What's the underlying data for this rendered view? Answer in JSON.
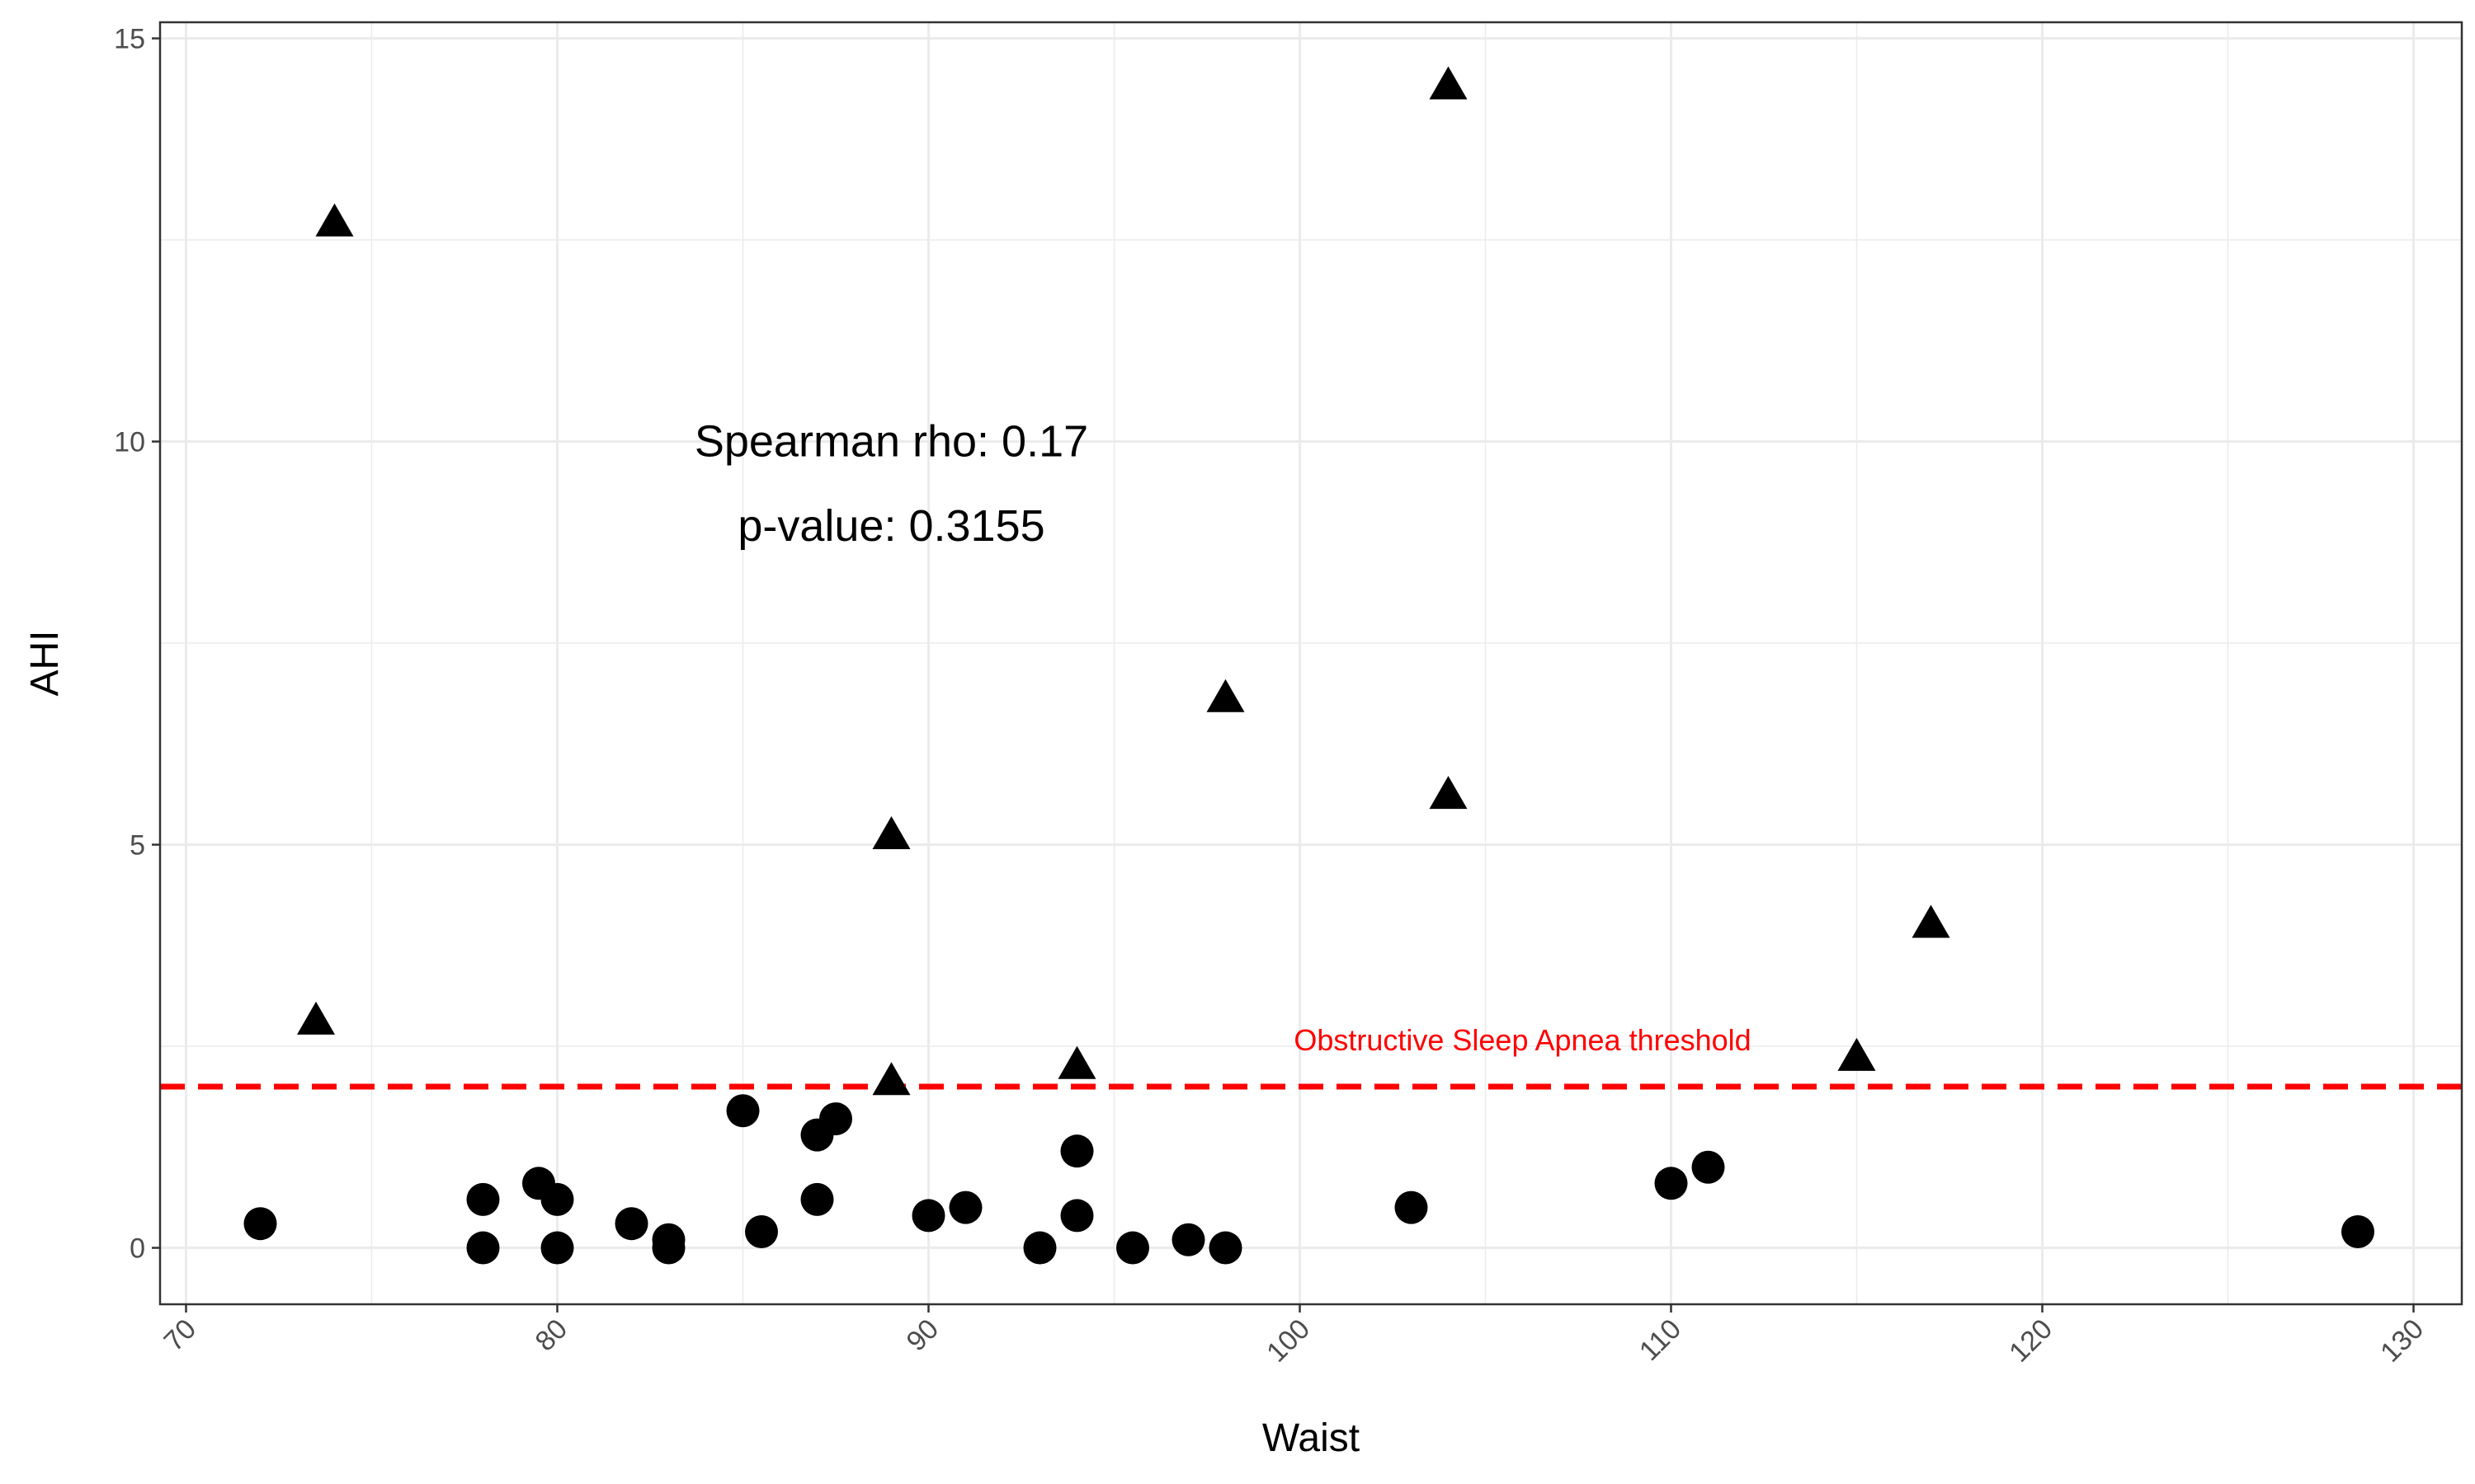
{
  "chart_data": {
    "type": "scatter",
    "xlabel": "Waist",
    "ylabel": "AHI",
    "xlim": [
      69.3,
      131.3
    ],
    "ylim": [
      -0.7,
      15.2
    ],
    "x_ticks": [
      70,
      80,
      90,
      100,
      110,
      120,
      130
    ],
    "x_tick_labels": [
      "70",
      "80",
      "90",
      "100",
      "110",
      "120",
      "130"
    ],
    "y_ticks": [
      0,
      5,
      10,
      15
    ],
    "y_tick_labels": [
      "0",
      "5",
      "10",
      "15"
    ],
    "grid": true,
    "x_tick_rotation": 45,
    "annotation": {
      "line1": "Spearman rho: 0.17",
      "line2": "p-value: 0.3155",
      "x": 89,
      "y_line1": 10,
      "y_line2": 8.95
    },
    "threshold": {
      "y": 2,
      "label": "Obstructive Sleep Apnea threshold",
      "label_x": 106,
      "label_y": 2.45,
      "color": "#ff0000",
      "style": "dashed"
    },
    "series": [
      {
        "marker": "circle",
        "x": [
          72,
          78,
          78,
          79.5,
          80,
          80,
          82,
          83,
          83,
          85,
          85.5,
          87,
          87,
          87.5,
          90,
          91,
          93,
          94,
          94,
          95.5,
          97,
          98,
          103,
          110,
          111,
          128.5
        ],
        "y": [
          0.3,
          0.6,
          0.0,
          0.8,
          0.6,
          0.0,
          0.3,
          0.1,
          0.0,
          1.7,
          0.2,
          1.4,
          0.6,
          1.6,
          0.4,
          0.5,
          0.0,
          1.2,
          0.4,
          0.0,
          0.1,
          0.0,
          0.5,
          0.8,
          1.0,
          0.2
        ]
      },
      {
        "marker": "triangle",
        "x": [
          73.5,
          74,
          89,
          89,
          94,
          98,
          104,
          104,
          115,
          117
        ],
        "y": [
          2.8,
          12.7,
          5.1,
          2.05,
          2.25,
          6.8,
          14.4,
          5.6,
          2.35,
          4.0
        ]
      }
    ],
    "colors": {
      "points": "#000000",
      "grid": "#ebebeb",
      "panel_border": "#333333",
      "tick": "#333333"
    }
  }
}
